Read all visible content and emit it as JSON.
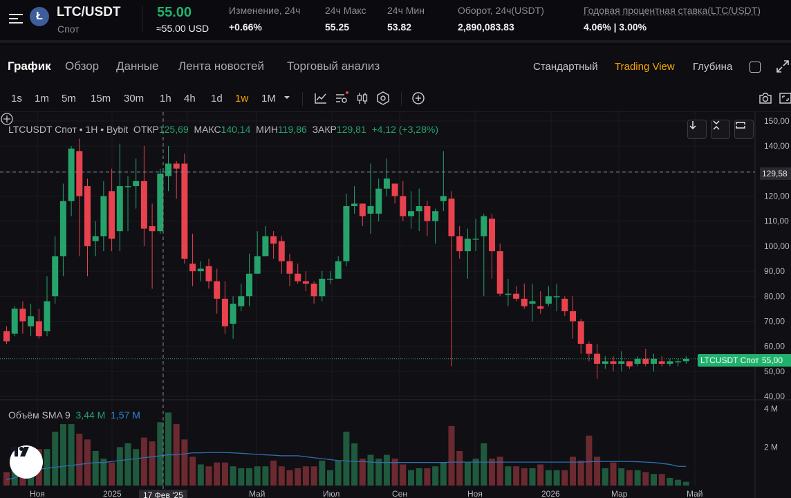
{
  "ticker": {
    "pair": "LTC/USDT",
    "type": "Спот",
    "coin_letter": "Ł",
    "last_price": "55.00",
    "last_price_usd": "≈55.00 USD",
    "change_label": "Изменение, 24ч",
    "change_value": "+0.66%",
    "high_label": "24ч Макс",
    "high_value": "55.25",
    "low_label": "24ч Мин",
    "low_value": "53.82",
    "turnover_label": "Оборот, 24ч(USDT)",
    "turnover_value": "2,890,083.83",
    "apr_label": "Годовая процентная ставка(LTC/USDT)",
    "apr_value": "4.06% | 3.00%"
  },
  "tabs": [
    "График",
    "Обзор",
    "Данные",
    "Лента новостей",
    "Торговый анализ"
  ],
  "views": [
    "Стандартный",
    "Trading View",
    "Глубина"
  ],
  "intervals": [
    "1s",
    "1m",
    "5m",
    "15m",
    "30m",
    "1h",
    "4h",
    "1d",
    "1w",
    "1M"
  ],
  "active_interval": "1w",
  "legend": {
    "symbol": "LTCUSDT Спот • 1H • Bybit",
    "open_label": "ОТКР",
    "open": "125,69",
    "high_label": "МАКС",
    "high": "140,14",
    "low_label": "МИН",
    "low": "119,86",
    "close_label": "ЗАКР",
    "close": "129,81",
    "change": "+4,12 (+3,28%)"
  },
  "volume_legend": {
    "label": "Объём SMA 9",
    "value1": "3,44 M",
    "value2": "1,57 M"
  },
  "price_axis": [
    "150,00",
    "140,00",
    "130,00",
    "120,00",
    "110,00",
    "100,00",
    "90,00",
    "80,00",
    "70,00",
    "60,00",
    "50,00",
    "40,00"
  ],
  "volume_axis": [
    "4 M",
    "2 M"
  ],
  "crosshair_price": "129,58",
  "price_tag_name": "LTCUSDT Спот",
  "price_tag_value": "55,00",
  "x_axis": [
    "Ноя",
    "2025",
    "Май",
    "Июл",
    "Сен",
    "Ноя",
    "2026",
    "Мар",
    "Май"
  ],
  "crosshair_date": "17 Фев '25",
  "colors": {
    "up": "#26a36b",
    "down": "#e8424e",
    "accent": "#f7a600",
    "green": "#20b26c"
  },
  "chart_data": {
    "type": "candlestick",
    "ylim": [
      40,
      150
    ],
    "volume_ylim_millions": [
      0,
      4.5
    ],
    "candles": [
      [
        66,
        62,
        68,
        61
      ],
      [
        65,
        75,
        76,
        64
      ],
      [
        75,
        70,
        78,
        65
      ],
      [
        68,
        72,
        77,
        64
      ],
      [
        70,
        64,
        75,
        63
      ],
      [
        66,
        78,
        88,
        64
      ],
      [
        80,
        96,
        104,
        77
      ],
      [
        96,
        118,
        125,
        88
      ],
      [
        118,
        139,
        140,
        112
      ],
      [
        138,
        120,
        143,
        96
      ],
      [
        124,
        100,
        127,
        88
      ],
      [
        102,
        104,
        110,
        96
      ],
      [
        104,
        120,
        126,
        98
      ],
      [
        122,
        103,
        131,
        98
      ],
      [
        106,
        124,
        141,
        98
      ],
      [
        124,
        124,
        128,
        106
      ],
      [
        124,
        126,
        135,
        115
      ],
      [
        126,
        107,
        140,
        100
      ],
      [
        108,
        106,
        117,
        83
      ],
      [
        106,
        129,
        131,
        105
      ],
      [
        128,
        133,
        140,
        122
      ],
      [
        133,
        131,
        134,
        119
      ],
      [
        133,
        95,
        137,
        93
      ],
      [
        93,
        90,
        105,
        84
      ],
      [
        90,
        91,
        94,
        86
      ],
      [
        92,
        86,
        95,
        83
      ],
      [
        86,
        79,
        91,
        73
      ],
      [
        79,
        68,
        86,
        65
      ],
      [
        69,
        77,
        80,
        63
      ],
      [
        76,
        80,
        85,
        74
      ],
      [
        80,
        89,
        97,
        76
      ],
      [
        89,
        96,
        106,
        89
      ],
      [
        96,
        104,
        108,
        98
      ],
      [
        104,
        101,
        106,
        95
      ],
      [
        102,
        94,
        104,
        89
      ],
      [
        94,
        89,
        97,
        84
      ],
      [
        89,
        86,
        93,
        85
      ],
      [
        86,
        85,
        90,
        82
      ],
      [
        85,
        80,
        86,
        77
      ],
      [
        80,
        87,
        90,
        78
      ],
      [
        87,
        87,
        90,
        85
      ],
      [
        87,
        94,
        96,
        87
      ],
      [
        94,
        116,
        121,
        92
      ],
      [
        116,
        117,
        124,
        113
      ],
      [
        117,
        112,
        117,
        108
      ],
      [
        113,
        116,
        133,
        105
      ],
      [
        113,
        123,
        127,
        110
      ],
      [
        123,
        127,
        135,
        120
      ],
      [
        125,
        120,
        124,
        117
      ],
      [
        120,
        112,
        126,
        110
      ],
      [
        112,
        114,
        122,
        107
      ],
      [
        114,
        116,
        123,
        106
      ],
      [
        116,
        110,
        118,
        104
      ],
      [
        110,
        114,
        115,
        101
      ],
      [
        118,
        120,
        138,
        114
      ],
      [
        119,
        104,
        122,
        52
      ],
      [
        104,
        98,
        108,
        95
      ],
      [
        98,
        103,
        107,
        87
      ],
      [
        103,
        103,
        111,
        98
      ],
      [
        104,
        112,
        113,
        80
      ],
      [
        111,
        98,
        113,
        87
      ],
      [
        98,
        81,
        101,
        80
      ],
      [
        81,
        81,
        87,
        76
      ],
      [
        81,
        79,
        84,
        78
      ],
      [
        79,
        76,
        85,
        75
      ],
      [
        77,
        78,
        85,
        70
      ],
      [
        76,
        75,
        82,
        73
      ],
      [
        77,
        80,
        84,
        76
      ],
      [
        80,
        80,
        85,
        74
      ],
      [
        79,
        74,
        80,
        72
      ],
      [
        74,
        70,
        80,
        63
      ],
      [
        70,
        61,
        71,
        57
      ],
      [
        61,
        57,
        62,
        54
      ],
      [
        57,
        53,
        61,
        47
      ],
      [
        53,
        54,
        56,
        51
      ],
      [
        54,
        53,
        56,
        50
      ],
      [
        53,
        54,
        58,
        50
      ],
      [
        54,
        52,
        53,
        51
      ],
      [
        53,
        55,
        56,
        52
      ],
      [
        55,
        53,
        59,
        52
      ],
      [
        53,
        55,
        57,
        50
      ],
      [
        54,
        53,
        56,
        52
      ],
      [
        53,
        54,
        55,
        52
      ],
      [
        54,
        54,
        55,
        52
      ],
      [
        54,
        55,
        56,
        53
      ]
    ],
    "volumes_millions": [
      0.7,
      1.6,
      1.1,
      1.7,
      1.9,
      1.9,
      2.8,
      3.2,
      3.2,
      2.7,
      2.4,
      1.8,
      1.4,
      1.2,
      2.0,
      2.2,
      1.9,
      2.5,
      2.3,
      3.3,
      3.8,
      3.2,
      2.4,
      1.5,
      1.1,
      1.0,
      1.2,
      1.2,
      1.0,
      0.9,
      0.9,
      1.0,
      1.0,
      1.3,
      1.0,
      0.8,
      0.9,
      1.0,
      1.0,
      1.3,
      0.8,
      1.3,
      2.8,
      2.2,
      1.4,
      1.6,
      1.4,
      1.6,
      1.4,
      1.1,
      0.8,
      0.9,
      0.9,
      1.0,
      1.2,
      3.1,
      1.8,
      1.2,
      1.4,
      2.2,
      1.4,
      1.5,
      1.0,
      1.0,
      0.9,
      0.9,
      1.1,
      0.8,
      0.8,
      0.8,
      1.5,
      1.3,
      2.6,
      1.5,
      0.9,
      1.2,
      0.9,
      0.8,
      0.8,
      0.7,
      0.6,
      0.6,
      0.4,
      0.3,
      0.2
    ],
    "sma": [
      0.3,
      0.4,
      0.6,
      0.75,
      0.85,
      0.9,
      0.95,
      1.0,
      1.05,
      1.1,
      1.15,
      1.2,
      1.2,
      1.25,
      1.3,
      1.35,
      1.4,
      1.45,
      1.5,
      1.55,
      1.6,
      1.6,
      1.65,
      1.7,
      1.7,
      1.72,
      1.72,
      1.72,
      1.7,
      1.68,
      1.65,
      1.62,
      1.6,
      1.58,
      1.55,
      1.55,
      1.55,
      1.5,
      1.45,
      1.4,
      1.35,
      1.3,
      1.28,
      1.25,
      1.25,
      1.22,
      1.2,
      1.2,
      1.2,
      1.2,
      1.2,
      1.2,
      1.2,
      1.2,
      1.2,
      1.22,
      1.22,
      1.22,
      1.22,
      1.22,
      1.22,
      1.22,
      1.22,
      1.22,
      1.22,
      1.22,
      1.22,
      1.22,
      1.22,
      1.22,
      1.22,
      1.22,
      1.24,
      1.25,
      1.25,
      1.25,
      1.25,
      1.25,
      1.24,
      1.22,
      1.2,
      1.15,
      1.1,
      1.0,
      1.0
    ]
  }
}
